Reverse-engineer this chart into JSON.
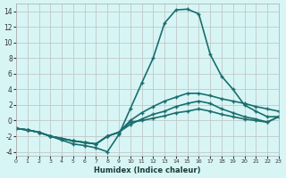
{
  "xlabel": "Humidex (Indice chaleur)",
  "xlim": [
    0,
    23
  ],
  "ylim": [
    -4.5,
    15
  ],
  "yticks": [
    -4,
    -2,
    0,
    2,
    4,
    6,
    8,
    10,
    12,
    14
  ],
  "xticks": [
    0,
    1,
    2,
    3,
    4,
    5,
    6,
    7,
    8,
    9,
    10,
    11,
    12,
    13,
    14,
    15,
    16,
    17,
    18,
    19,
    20,
    21,
    22,
    23
  ],
  "bg_color": "#d8f5f5",
  "grid_color": "#c0c8c8",
  "line_color": "#1a6e6e",
  "line1_x": [
    0,
    1,
    2,
    3,
    4,
    5,
    6,
    7,
    8,
    9,
    10,
    11,
    12,
    13,
    14,
    15,
    16,
    17,
    18,
    19,
    20,
    21,
    22,
    23
  ],
  "line1_y": [
    -1,
    -1.2,
    -1.5,
    -2.0,
    -2.5,
    -3.0,
    -3.2,
    -3.5,
    -4.0,
    -1.8,
    1.5,
    4.8,
    8.0,
    12.5,
    14.2,
    14.3,
    13.7,
    8.5,
    5.7,
    4.0,
    2.0,
    1.2,
    0.5,
    0.5
  ],
  "line2_x": [
    0,
    1,
    2,
    3,
    4,
    5,
    6,
    7,
    8,
    9,
    10,
    11,
    12,
    13,
    14,
    15,
    16,
    17,
    18,
    19,
    20,
    21,
    22,
    23
  ],
  "line2_y": [
    -1,
    -1.2,
    -1.5,
    -2.0,
    -2.3,
    -2.6,
    -2.8,
    -3.0,
    -2.0,
    -1.5,
    0.0,
    1.0,
    1.8,
    2.5,
    3.0,
    3.5,
    3.5,
    3.2,
    2.8,
    2.5,
    2.2,
    1.8,
    1.5,
    1.2
  ],
  "line3_x": [
    0,
    1,
    2,
    3,
    4,
    5,
    6,
    7,
    8,
    9,
    10,
    11,
    12,
    13,
    14,
    15,
    16,
    17,
    18,
    19,
    20,
    21,
    22,
    23
  ],
  "line3_y": [
    -1,
    -1.2,
    -1.5,
    -2.0,
    -2.3,
    -2.6,
    -2.8,
    -3.0,
    -2.0,
    -1.5,
    -0.5,
    0.2,
    0.8,
    1.2,
    1.8,
    2.2,
    2.5,
    2.2,
    1.5,
    1.0,
    0.5,
    0.2,
    -0.2,
    0.5
  ],
  "line4_x": [
    0,
    1,
    2,
    3,
    4,
    5,
    6,
    7,
    8,
    9,
    10,
    11,
    12,
    13,
    14,
    15,
    16,
    17,
    18,
    19,
    20,
    21,
    22,
    23
  ],
  "line4_y": [
    -1,
    -1.2,
    -1.5,
    -2.0,
    -2.3,
    -2.6,
    -2.8,
    -3.0,
    -2.0,
    -1.5,
    -0.2,
    0.0,
    0.3,
    0.6,
    1.0,
    1.2,
    1.5,
    1.2,
    0.8,
    0.5,
    0.2,
    0.0,
    -0.2,
    0.5
  ]
}
